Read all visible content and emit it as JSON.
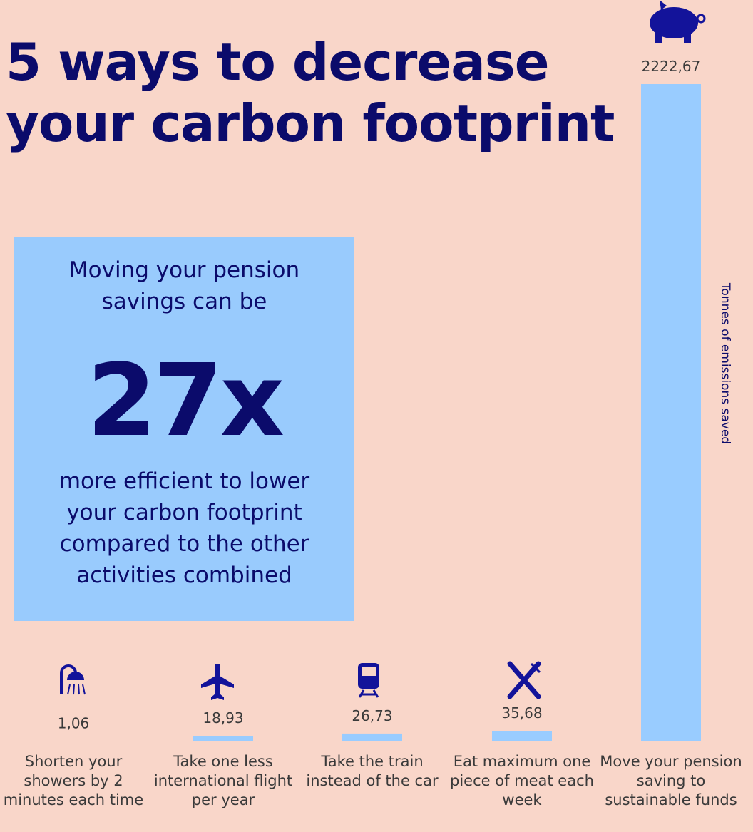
{
  "chart_data": {
    "type": "bar",
    "title": "5 ways to decrease your carbon footprint",
    "callout": {
      "lead": "Moving your pension savings can be",
      "highlight": "27x",
      "tail": "more efficient to lower your carbon footprint compared to the other activities combined"
    },
    "y_label": "Tonnes of emissions saved",
    "categories": [
      "Shorten your showers by 2 minutes each time",
      "Take one less international flight per year",
      "Take the train instead of the car",
      "Eat maximum one piece of meat each week",
      "Move your pension saving to sustainable funds"
    ],
    "values": [
      1.06,
      18.93,
      26.73,
      35.68,
      2222.67
    ],
    "value_labels": [
      "1,06",
      "18,93",
      "26,73",
      "35,68",
      "2222,67"
    ],
    "color": "#99ccff",
    "ylim": [
      0,
      2222.67
    ]
  }
}
